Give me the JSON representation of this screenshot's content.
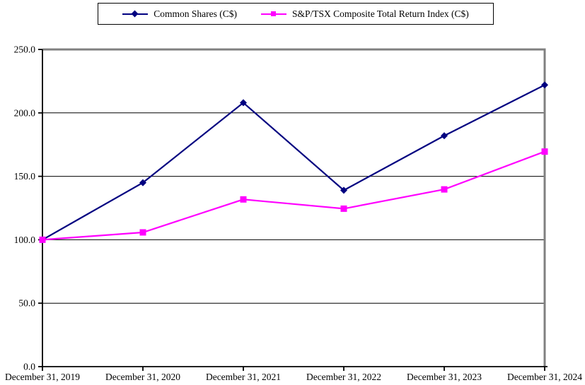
{
  "chart_data": {
    "type": "line",
    "categories": [
      "December 31, 2019",
      "December 31, 2020",
      "December 31, 2021",
      "December 31, 2022",
      "December 31, 2023",
      "December 31, 2024"
    ],
    "series": [
      {
        "name": "Common Shares (C$)",
        "color": "#000080",
        "marker": "diamond",
        "values": [
          100.0,
          145.0,
          208.0,
          139.0,
          182.0,
          222.0
        ]
      },
      {
        "name": "S&P/TSX Composite Total Return Index (C$)",
        "color": "#FF00FF",
        "marker": "square",
        "values": [
          100.0,
          105.8,
          131.8,
          124.5,
          139.7,
          169.5
        ]
      }
    ],
    "ylim": [
      0,
      250
    ],
    "ytick_interval": 50,
    "ytick_labels": [
      "0.0",
      "50.0",
      "100.0",
      "150.0",
      "200.0",
      "250.0"
    ],
    "grid": "horizontal",
    "gridline_color": "#000000",
    "axis_color": "#000000",
    "border_color": "#808080",
    "legend_border_color": "#000000",
    "legend_position": "top",
    "background": "#FFFFFF"
  }
}
